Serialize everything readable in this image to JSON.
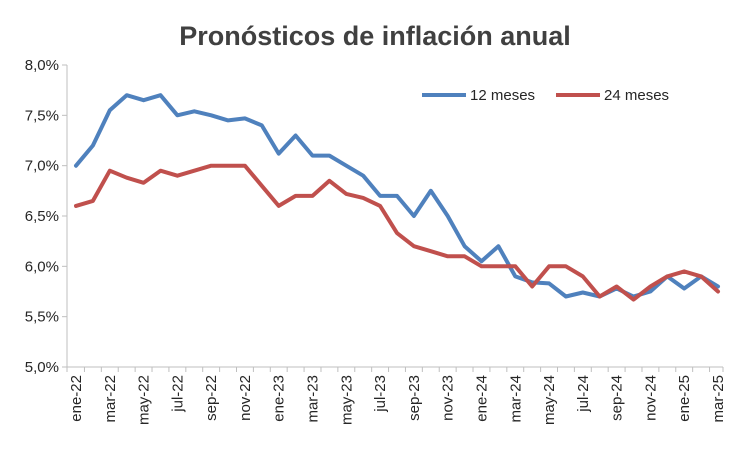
{
  "chart_data": {
    "type": "line",
    "title": "Pronósticos de inflación anual",
    "xlabel": "",
    "ylabel": "",
    "ylim": [
      5.0,
      8.0
    ],
    "y_ticks": [
      "5,0%",
      "5,5%",
      "6,0%",
      "6,5%",
      "7,0%",
      "7,5%",
      "8,0%"
    ],
    "y_tick_values": [
      5.0,
      5.5,
      6.0,
      6.5,
      7.0,
      7.5,
      8.0
    ],
    "categories": [
      "ene-22",
      "feb-22",
      "mar-22",
      "abr-22",
      "may-22",
      "jun-22",
      "jul-22",
      "ago-22",
      "sep-22",
      "oct-22",
      "nov-22",
      "dic-22",
      "ene-23",
      "feb-23",
      "mar-23",
      "abr-23",
      "may-23",
      "jun-23",
      "jul-23",
      "ago-23",
      "sep-23",
      "oct-23",
      "nov-23",
      "dic-23",
      "ene-24",
      "feb-24",
      "mar-24",
      "abr-24",
      "may-24",
      "jun-24",
      "jul-24",
      "ago-24",
      "sep-24",
      "oct-24",
      "nov-24",
      "dic-24",
      "ene-25",
      "feb-25",
      "mar-25"
    ],
    "x_tick_labels": [
      "ene-22",
      "mar-22",
      "may-22",
      "jul-22",
      "sep-22",
      "nov-22",
      "ene-23",
      "mar-23",
      "may-23",
      "jul-23",
      "sep-23",
      "nov-23",
      "ene-24",
      "mar-24",
      "may-24",
      "jul-24",
      "sep-24",
      "nov-24",
      "ene-25",
      "mar-25"
    ],
    "legend_position": "top-right",
    "grid": false,
    "series": [
      {
        "name": "12 meses",
        "color": "#4f81bd",
        "values": [
          7.0,
          7.2,
          7.55,
          7.7,
          7.65,
          7.7,
          7.5,
          7.54,
          7.5,
          7.45,
          7.47,
          7.4,
          7.12,
          7.3,
          7.1,
          7.1,
          7.0,
          6.9,
          6.7,
          6.7,
          6.5,
          6.75,
          6.5,
          6.2,
          6.05,
          6.2,
          5.9,
          5.84,
          5.83,
          5.7,
          5.74,
          5.7,
          5.78,
          5.7,
          5.75,
          5.9,
          5.78,
          5.9,
          5.8
        ]
      },
      {
        "name": "24 meses",
        "color": "#c0504d",
        "values": [
          6.6,
          6.65,
          6.95,
          6.88,
          6.83,
          6.95,
          6.9,
          6.95,
          7.0,
          7.0,
          7.0,
          6.8,
          6.6,
          6.7,
          6.7,
          6.85,
          6.72,
          6.68,
          6.6,
          6.33,
          6.2,
          6.15,
          6.1,
          6.1,
          6.0,
          6.0,
          6.0,
          5.8,
          6.0,
          6.0,
          5.9,
          5.7,
          5.8,
          5.67,
          5.8,
          5.9,
          5.95,
          5.9,
          5.75
        ]
      }
    ]
  }
}
